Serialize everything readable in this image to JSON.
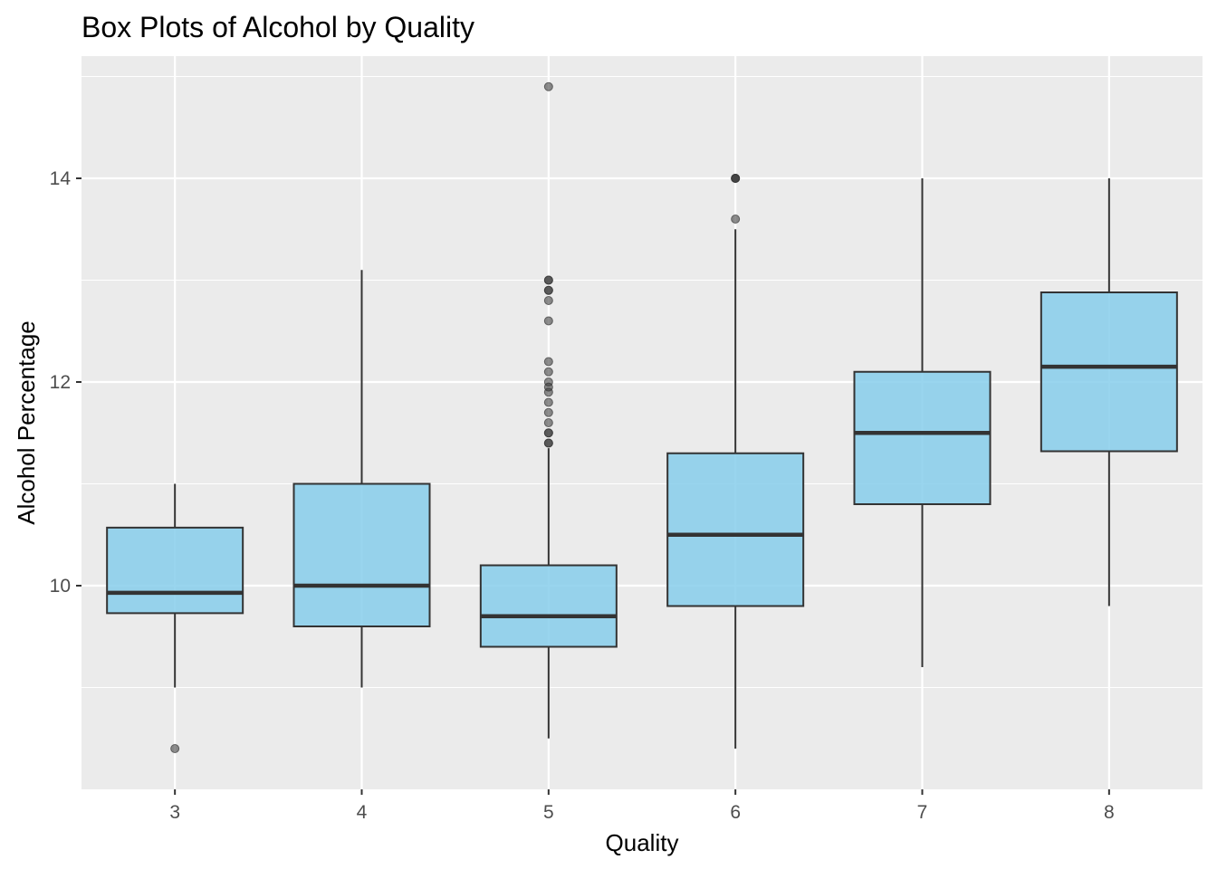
{
  "chart_data": {
    "type": "box",
    "title": "Box Plots of Alcohol by Quality",
    "xlabel": "Quality",
    "ylabel": "Alcohol Percentage",
    "ylim": [
      8.0,
      15.2
    ],
    "y_ticks": [
      10,
      12,
      14
    ],
    "y_tick_labels": [
      "10",
      "12",
      "14"
    ],
    "y_minor_ticks": [
      9,
      11,
      13,
      15
    ],
    "categories": [
      "3",
      "4",
      "5",
      "6",
      "7",
      "8"
    ],
    "grid": true,
    "legend": "none",
    "colors": {
      "panel": "#ebebeb",
      "grid": "#ffffff",
      "box_fill": "#87ceeb",
      "box_stroke": "#333333",
      "outlier": "#333333"
    },
    "series": [
      {
        "category": "3",
        "whisker_low": 9.0,
        "q1": 9.73,
        "median": 9.93,
        "q3": 10.57,
        "whisker_high": 11.0,
        "outliers": [
          8.4
        ]
      },
      {
        "category": "4",
        "whisker_low": 9.0,
        "q1": 9.6,
        "median": 10.0,
        "q3": 11.0,
        "whisker_high": 13.1,
        "outliers": []
      },
      {
        "category": "5",
        "whisker_low": 8.5,
        "q1": 9.4,
        "median": 9.7,
        "q3": 10.2,
        "whisker_high": 11.35,
        "outliers": [
          11.4,
          11.4,
          11.5,
          11.5,
          11.6,
          11.7,
          11.8,
          11.9,
          11.95,
          12.0,
          12.1,
          12.2,
          12.6,
          12.8,
          12.9,
          12.9,
          13.0,
          13.0,
          14.9
        ]
      },
      {
        "category": "6",
        "whisker_low": 8.4,
        "q1": 9.8,
        "median": 10.5,
        "q3": 11.3,
        "whisker_high": 13.5,
        "outliers": [
          13.6,
          14.0,
          14.0,
          14.0
        ]
      },
      {
        "category": "7",
        "whisker_low": 9.2,
        "q1": 10.8,
        "median": 11.5,
        "q3": 12.1,
        "whisker_high": 14.0,
        "outliers": []
      },
      {
        "category": "8",
        "whisker_low": 9.8,
        "q1": 11.32,
        "median": 12.15,
        "q3": 12.88,
        "whisker_high": 14.0,
        "outliers": []
      }
    ]
  }
}
